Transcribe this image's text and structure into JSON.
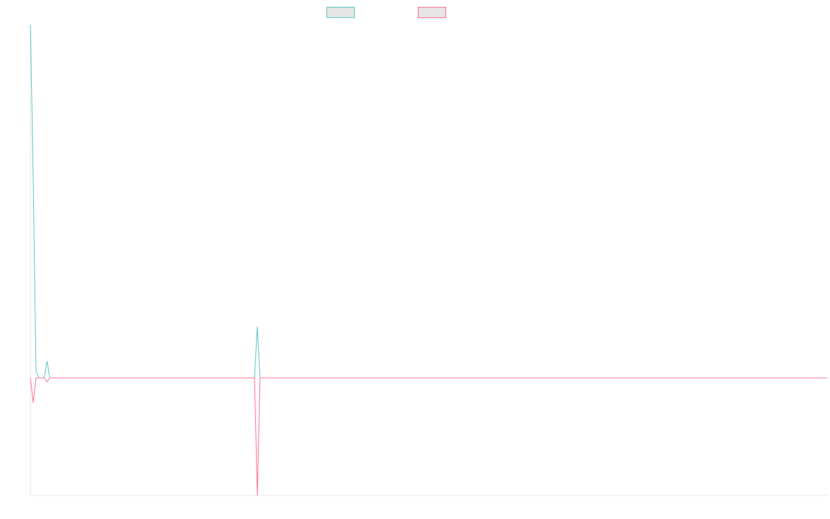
{
  "chart_data": {
    "type": "line",
    "x": [
      0,
      1,
      2,
      3,
      5,
      6,
      7,
      81,
      82,
      83,
      288
    ],
    "series": [
      {
        "color": "#4bc0c0",
        "values": [
          510,
          290,
          10,
          0,
          0,
          24,
          0,
          0,
          74,
          0,
          0
        ]
      },
      {
        "color": "#ff6384",
        "values": [
          0,
          -36,
          0,
          0,
          0,
          -6,
          0,
          0,
          -170,
          0,
          0
        ]
      }
    ],
    "xlim": [
      0,
      288
    ],
    "ylim": [
      -170,
      510
    ],
    "grid": false,
    "legend": "top"
  }
}
